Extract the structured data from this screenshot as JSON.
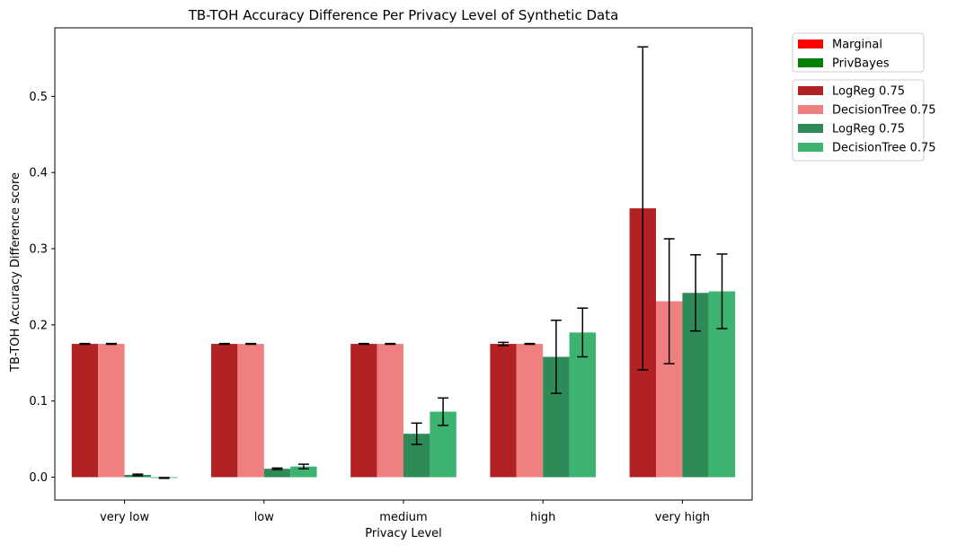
{
  "chart_data": {
    "type": "bar",
    "title": "TB-TOH Accuracy Difference Per Privacy Level of Synthetic Data",
    "xlabel": "Privacy Level",
    "ylabel": "TB-TOH Accuracy Difference score",
    "categories": [
      "very low",
      "low",
      "medium",
      "high",
      "very high"
    ],
    "ylim": [
      -0.03,
      0.59
    ],
    "yticks": [
      0.0,
      0.1,
      0.2,
      0.3,
      0.4,
      0.5
    ],
    "ytick_labels": [
      "0.0",
      "0.1",
      "0.2",
      "0.3",
      "0.4",
      "0.5"
    ],
    "grid": false,
    "series": [
      {
        "name": "LogReg 0.75",
        "color": "#b22222",
        "values": [
          0.175,
          0.175,
          0.175,
          0.175,
          0.353
        ],
        "errors": [
          0.0005,
          0.0005,
          0.0005,
          0.002,
          0.212
        ]
      },
      {
        "name": "DecisionTree 0.75",
        "color": "#f08080",
        "values": [
          0.175,
          0.175,
          0.175,
          0.175,
          0.231
        ],
        "errors": [
          0.0005,
          0.0005,
          0.0005,
          0.0005,
          0.082
        ]
      },
      {
        "name": "LogReg 0.75",
        "color": "#2e8b57",
        "values": [
          0.003,
          0.011,
          0.057,
          0.158,
          0.242
        ],
        "errors": [
          0.001,
          0.001,
          0.014,
          0.048,
          0.05
        ]
      },
      {
        "name": "DecisionTree 0.75",
        "color": "#3cb371",
        "values": [
          -0.001,
          0.014,
          0.086,
          0.19,
          0.244
        ],
        "errors": [
          0.0005,
          0.003,
          0.018,
          0.032,
          0.049
        ]
      }
    ],
    "legend_top": {
      "placement": "upper-right outside",
      "entries": [
        {
          "label": "Marginal",
          "color": "#ff0000"
        },
        {
          "label": "PrivBayes",
          "color": "#008000"
        }
      ]
    },
    "legend_bottom": {
      "placement": "right outside",
      "entries": [
        {
          "label": "LogReg 0.75",
          "color": "#b22222"
        },
        {
          "label": "DecisionTree 0.75",
          "color": "#f08080"
        },
        {
          "label": "LogReg 0.75",
          "color": "#2e8b57"
        },
        {
          "label": "DecisionTree 0.75",
          "color": "#3cb371"
        }
      ]
    }
  }
}
